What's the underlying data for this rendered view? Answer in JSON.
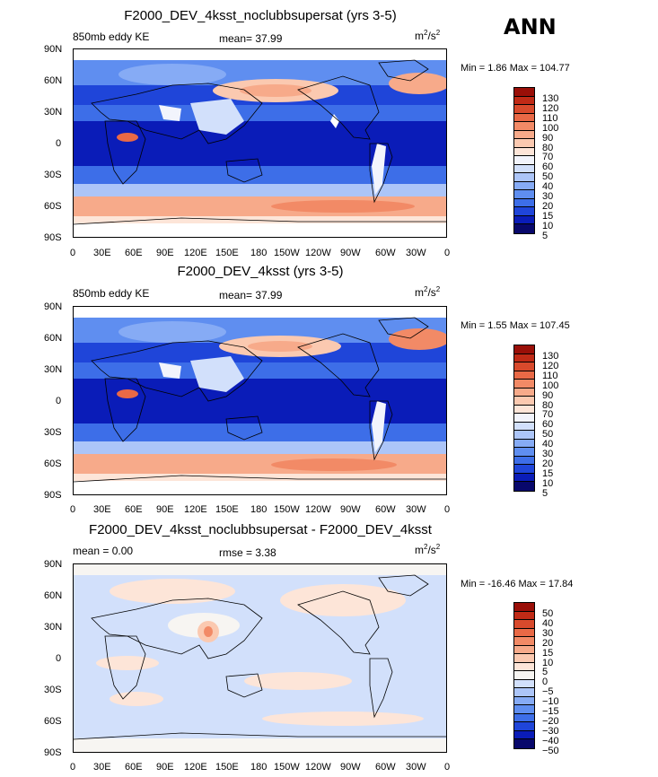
{
  "season": "ANN",
  "colors": {
    "positive_scale": [
      "#08086b",
      "#0a1cb8",
      "#1f45d9",
      "#3d6ee8",
      "#5f8ef0",
      "#86abf5",
      "#acc5f8",
      "#d2e0fb",
      "#f2f4fc",
      "#fde5d8",
      "#fbc9b0",
      "#f7aa8a",
      "#f28a66",
      "#e96946",
      "#d84a2c",
      "#c02a16",
      "#9a0f08"
    ],
    "diff_scale": [
      "#08086b",
      "#0a1cb8",
      "#1f45d9",
      "#3d6ee8",
      "#5f8ef0",
      "#86abf5",
      "#acc5f8",
      "#d2e0fb",
      "#f7f5f2",
      "#fde5d8",
      "#fbc9b0",
      "#f7aa8a",
      "#f28a66",
      "#e96946",
      "#d84a2c",
      "#c02a16",
      "#9a0f08"
    ]
  },
  "panels": [
    {
      "title": "F2000_DEV_4ksst_noclubbsupersat (yrs 3-5)",
      "left_label": "850mb eddy KE",
      "center_label": "mean=  37.99",
      "units": "m²/s²",
      "minmax": "Min =    1.86 Max =  104.77",
      "colorbar_labels": [
        "130",
        "120",
        "110",
        "100",
        "90",
        "80",
        "70",
        "60",
        "50",
        "40",
        "30",
        "20",
        "15",
        "10",
        "5"
      ]
    },
    {
      "title": "F2000_DEV_4ksst (yrs 3-5)",
      "left_label": "850mb eddy KE",
      "center_label": "mean=  37.99",
      "units": "m²/s²",
      "minmax": "Min =    1.55 Max =  107.45",
      "colorbar_labels": [
        "130",
        "120",
        "110",
        "100",
        "90",
        "80",
        "70",
        "60",
        "50",
        "40",
        "30",
        "20",
        "15",
        "10",
        "5"
      ]
    },
    {
      "title": "F2000_DEV_4ksst_noclubbsupersat - F2000_DEV_4ksst",
      "left_label": "mean =    0.00",
      "center_label": "rmse =    3.38",
      "units": "m²/s²",
      "minmax": "Min = -16.46 Max =  17.84",
      "colorbar_labels": [
        "50",
        "40",
        "30",
        "20",
        "15",
        "10",
        "5",
        "0",
        "−5",
        "−10",
        "−15",
        "−20",
        "−30",
        "−40",
        "−50"
      ]
    }
  ],
  "chart_data": [
    {
      "type": "heatmap",
      "title": "F2000_DEV_4ksst_noclubbsupersat (yrs 3-5)",
      "variable": "850mb eddy KE",
      "units": "m²/s²",
      "mean": 37.99,
      "min": 1.86,
      "max": 104.77,
      "contour_levels": [
        5,
        10,
        15,
        20,
        30,
        40,
        50,
        60,
        70,
        80,
        90,
        100,
        110,
        120,
        130
      ],
      "xlabel": "",
      "ylabel": "",
      "xticks": [
        "0",
        "30E",
        "60E",
        "90E",
        "120E",
        "150E",
        "180",
        "150W",
        "120W",
        "90W",
        "60W",
        "30W",
        "0"
      ],
      "yticks": [
        "90N",
        "60N",
        "30N",
        "0",
        "30S",
        "60S",
        "90S"
      ],
      "xlim": [
        0,
        360
      ],
      "ylim": [
        -90,
        90
      ]
    },
    {
      "type": "heatmap",
      "title": "F2000_DEV_4ksst (yrs 3-5)",
      "variable": "850mb eddy KE",
      "units": "m²/s²",
      "mean": 37.99,
      "min": 1.55,
      "max": 107.45,
      "contour_levels": [
        5,
        10,
        15,
        20,
        30,
        40,
        50,
        60,
        70,
        80,
        90,
        100,
        110,
        120,
        130
      ],
      "xticks": [
        "0",
        "30E",
        "60E",
        "90E",
        "120E",
        "150E",
        "180",
        "150W",
        "120W",
        "90W",
        "60W",
        "30W",
        "0"
      ],
      "yticks": [
        "90N",
        "60N",
        "30N",
        "0",
        "30S",
        "60S",
        "90S"
      ],
      "xlim": [
        0,
        360
      ],
      "ylim": [
        -90,
        90
      ]
    },
    {
      "type": "heatmap",
      "title": "F2000_DEV_4ksst_noclubbsupersat - F2000_DEV_4ksst",
      "units": "m²/s²",
      "mean": 0.0,
      "rmse": 3.38,
      "min": -16.46,
      "max": 17.84,
      "contour_levels": [
        -50,
        -40,
        -30,
        -20,
        -15,
        -10,
        -5,
        0,
        5,
        10,
        15,
        20,
        30,
        40,
        50
      ],
      "xticks": [
        "0",
        "30E",
        "60E",
        "90E",
        "120E",
        "150E",
        "180",
        "150W",
        "120W",
        "90W",
        "60W",
        "30W",
        "0"
      ],
      "yticks": [
        "90N",
        "60N",
        "30N",
        "0",
        "30S",
        "60S",
        "90S"
      ],
      "xlim": [
        0,
        360
      ],
      "ylim": [
        -90,
        90
      ]
    }
  ],
  "xticks": [
    "0",
    "30E",
    "60E",
    "90E",
    "120E",
    "150E",
    "180",
    "150W",
    "120W",
    "90W",
    "60W",
    "30W",
    "0"
  ],
  "yticks": [
    "90N",
    "60N",
    "30N",
    "0",
    "30S",
    "60S",
    "90S"
  ]
}
